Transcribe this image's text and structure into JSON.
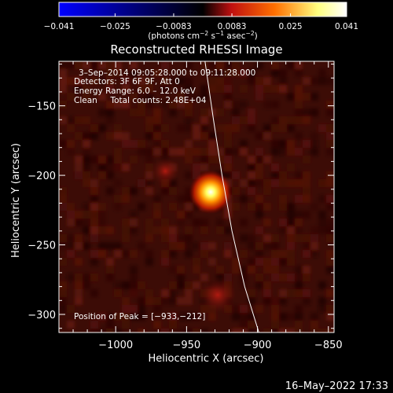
{
  "chart_data": {
    "type": "heatmap",
    "title": "Reconstructed RHESSI Image",
    "xlabel": "Heliocentric X (arcsec)",
    "ylabel": "Heliocentric Y (arcsec)",
    "xlim": [
      -1040,
      -846
    ],
    "ylim": [
      -313,
      -118
    ],
    "xticks": [
      -1000,
      -950,
      -900,
      -850
    ],
    "xtick_labels": [
      "−1000",
      "−950",
      "−900",
      "−850"
    ],
    "yticks": [
      -150,
      -200,
      -250,
      -300
    ],
    "ytick_labels": [
      "−150",
      "−200",
      "−250",
      "−300"
    ],
    "colorbar": {
      "range": [
        -0.041,
        0.041
      ],
      "ticks": [
        -0.041,
        -0.025,
        -0.0083,
        0.0083,
        0.025,
        0.041
      ],
      "tick_labels": [
        "−0.041",
        "−0.025",
        "−0.0083",
        "0.0083",
        "0.025",
        "0.041"
      ],
      "unit_main": "(photons cm",
      "unit_sup1": "−2",
      "unit_mid": " s",
      "unit_sup2": "−1",
      "unit_mid2": " asec",
      "unit_sup3": "−2",
      "unit_end": ")",
      "colors": [
        "#0000ff",
        "#000000",
        "#c01010",
        "#ff7000",
        "#ffff80",
        "#ffffff"
      ]
    },
    "annotations": {
      "line1": "3–Sep–2014 09:05:28.000 to 09:11:28.000",
      "line2": "Detectors: 3F 6F 9F, Att 0",
      "line3": "Energy Range: 6.0 – 12.0 keV",
      "line4": "Clean     Total counts: 2.48E+04",
      "peak": "Position of Peak = [−933,−212]"
    },
    "peak": {
      "x": -933,
      "y": -212,
      "value": 0.041
    },
    "secondary_sources": [
      {
        "x": -928,
        "y": -286,
        "value": 0.012
      },
      {
        "x": -965,
        "y": -197,
        "value": 0.006
      }
    ],
    "limb": [
      [
        -937,
        -118
      ],
      [
        -931,
        -160
      ],
      [
        -925,
        -200
      ],
      [
        -918,
        -240
      ],
      [
        -909,
        -280
      ],
      [
        -899,
        -313
      ]
    ]
  },
  "footer": {
    "timestamp": "16–May–2022 17:33"
  }
}
